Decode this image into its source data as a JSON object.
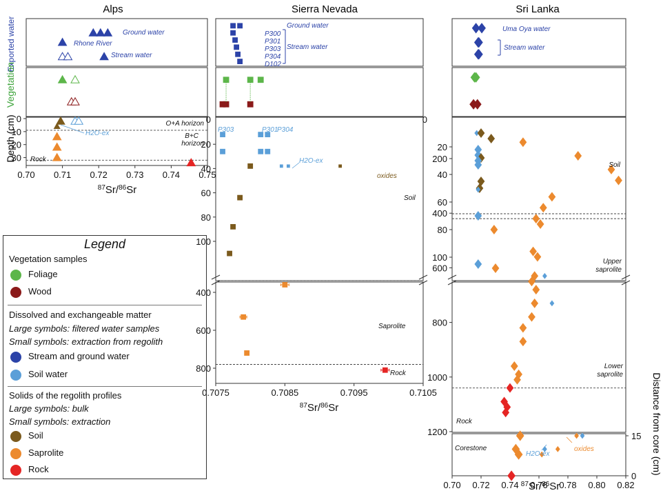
{
  "panels": {
    "alps": {
      "title": "Alps"
    },
    "sierra": {
      "title": "Sierra Nevada"
    },
    "srilanka": {
      "title": "Sri Lanka"
    }
  },
  "row_labels": {
    "exported_water": "Exported water",
    "vegetation": "Vegetation",
    "depth": "Depth (cm)",
    "distance": "Distance from core (cm)"
  },
  "xlabel": "87Sr/86Sr",
  "colors": {
    "foliage": "#5db64a",
    "wood": "#8b1a1a",
    "water": "#2c43a8",
    "soil_water": "#5b9fd8",
    "soil": "#7b5a1d",
    "saprolite": "#ec8a2e",
    "rock": "#e52524"
  },
  "annotations": {
    "alps_ground": "Ground water",
    "alps_rhone": "Rhone River",
    "alps_stream": "Stream water",
    "alps_oa": "O+A horizon",
    "alps_bc1": "B+C",
    "alps_bc2": "horizon",
    "alps_rock": "Rock",
    "alps_h2o": "H2O-ex",
    "sn_ground": "Ground water",
    "sn_p300": "P300",
    "sn_p301": "P301",
    "sn_p303": "P303",
    "sn_p304": "P304",
    "sn_d102": "D102",
    "sn_stream": "Stream water",
    "sn_lbl_p303": "P303",
    "sn_lbl_p301": "P301",
    "sn_lbl_p304": "P304",
    "sn_h2o": "H2O-ex",
    "sn_oxides": "oxides",
    "sn_soil": "Soil",
    "sn_saprolite": "Saprolite",
    "sn_rock": "Rock",
    "sl_uma": "Uma Oya water",
    "sl_stream": "Stream water",
    "sl_soil": "Soil",
    "sl_upper1": "Upper",
    "sl_upper2": "saprolite",
    "sl_lower1": "Lower",
    "sl_lower2": "saprolite",
    "sl_rock": "Rock",
    "sl_corestone": "Corestone",
    "sl_h2o": "H2O-ex",
    "sl_oxides": "oxides"
  },
  "legend": {
    "title": "Legend",
    "veg_header": "Vegetation samples",
    "foliage": "Foliage",
    "wood": "Wood",
    "dissolved_header": "Dissolved and exchangeable matter",
    "large_filtered": "Large symbols: filtered water samples",
    "small_extraction": "Small symbols: extraction from regolith",
    "stream_ground": "Stream and ground water",
    "soil_water": "Soil water",
    "solids_header": "Solids of the regolith profiles",
    "large_bulk": "Large symbols: bulk",
    "small_extr": "Small symbols: extraction",
    "soil": "Soil",
    "saprolite": "Saprolite",
    "rock": "Rock"
  },
  "chart_data": [
    {
      "type": "scatter",
      "panel": "Alps",
      "marker": "triangle",
      "xlim": [
        0.7,
        0.75
      ],
      "xticks": [
        "0.70",
        "0.71",
        "0.72",
        "0.73",
        "0.74",
        "0.75"
      ],
      "ylim_depth": [
        0,
        35
      ],
      "yticks": [
        "0",
        "10",
        "20",
        "30"
      ],
      "water": [
        {
          "x": 0.7185,
          "row": 0.3
        },
        {
          "x": 0.7205,
          "row": 0.3
        },
        {
          "x": 0.7225,
          "row": 0.3
        },
        {
          "x": 0.71,
          "row": 0.5
        },
        {
          "x": 0.71,
          "row": 0.8,
          "open": true
        },
        {
          "x": 0.7115,
          "row": 0.8,
          "open": true
        },
        {
          "x": 0.7215,
          "row": 0.8
        }
      ],
      "vegetation": [
        {
          "x": 0.71,
          "row": 0.25,
          "c": "foliage"
        },
        {
          "x": 0.7135,
          "row": 0.25,
          "c": "foliage",
          "open": true
        },
        {
          "x": 0.7125,
          "row": 0.7,
          "c": "wood",
          "open": true
        },
        {
          "x": 0.7135,
          "row": 0.7,
          "c": "wood",
          "open": true
        }
      ],
      "profile": [
        {
          "x": 0.7095,
          "d": 2,
          "c": "soil"
        },
        {
          "x": 0.7085,
          "d": 6,
          "c": "soil",
          "small": true
        },
        {
          "x": 0.7135,
          "d": 2,
          "c": "soil_water",
          "open": true
        },
        {
          "x": 0.7145,
          "d": 2,
          "c": "soil_water",
          "open": true
        },
        {
          "x": 0.7085,
          "d": 14,
          "c": "saprolite"
        },
        {
          "x": 0.7085,
          "d": 22,
          "c": "saprolite"
        },
        {
          "x": 0.7085,
          "d": 30,
          "c": "saprolite"
        },
        {
          "x": 0.7455,
          "d": 34,
          "c": "rock"
        }
      ],
      "hlines": [
        9,
        32
      ]
    },
    {
      "type": "scatter",
      "panel": "Sierra Nevada",
      "marker": "square",
      "xlim": [
        0.7075,
        0.7105
      ],
      "xticks": [
        "0.7075",
        "0.7085",
        "0.7095",
        "0.7105"
      ],
      "yticks_upper": [
        "0",
        "20",
        "40",
        "60",
        "80",
        "100"
      ],
      "yticks_lower": [
        "400",
        "600",
        "800"
      ],
      "water": [
        {
          "x": 0.70775,
          "row": 0.15
        },
        {
          "x": 0.70785,
          "row": 0.15
        },
        {
          "x": 0.70775,
          "row": 0.3
        },
        {
          "x": 0.70778,
          "row": 0.45
        },
        {
          "x": 0.7078,
          "row": 0.6
        },
        {
          "x": 0.70782,
          "row": 0.75
        },
        {
          "x": 0.70785,
          "row": 0.9
        }
      ],
      "vegetation": [
        {
          "x": 0.70765,
          "row": 0.25,
          "c": "foliage"
        },
        {
          "x": 0.708,
          "row": 0.25,
          "c": "foliage"
        },
        {
          "x": 0.70815,
          "row": 0.25,
          "c": "foliage"
        },
        {
          "x": 0.7076,
          "row": 0.75,
          "c": "wood"
        },
        {
          "x": 0.70765,
          "row": 0.75,
          "c": "wood"
        },
        {
          "x": 0.708,
          "row": 0.75,
          "c": "wood"
        }
      ],
      "profile_upper": [
        {
          "x": 0.7076,
          "d": 12,
          "c": "soil_water"
        },
        {
          "x": 0.7076,
          "d": 26,
          "c": "soil_water"
        },
        {
          "x": 0.70815,
          "d": 12,
          "c": "soil_water"
        },
        {
          "x": 0.70825,
          "d": 12,
          "c": "soil_water"
        },
        {
          "x": 0.70815,
          "d": 26,
          "c": "soil_water"
        },
        {
          "x": 0.70825,
          "d": 26,
          "c": "soil_water"
        },
        {
          "x": 0.708,
          "d": 38,
          "c": "soil"
        },
        {
          "x": 0.70785,
          "d": 64,
          "c": "soil"
        },
        {
          "x": 0.70775,
          "d": 88,
          "c": "soil"
        },
        {
          "x": 0.7077,
          "d": 110,
          "c": "soil"
        },
        {
          "x": 0.70845,
          "d": 38,
          "c": "soil_water",
          "small": true
        },
        {
          "x": 0.70855,
          "d": 38,
          "c": "soil_water",
          "small": true
        },
        {
          "x": 0.7093,
          "d": 38,
          "c": "soil",
          "small": true
        }
      ],
      "profile_lower": [
        {
          "x": 0.7085,
          "d": 360,
          "c": "saprolite",
          "err": 6e-05
        },
        {
          "x": 0.7079,
          "d": 530,
          "c": "saprolite",
          "err": 5e-05
        },
        {
          "x": 0.70795,
          "d": 720,
          "c": "saprolite"
        },
        {
          "x": 0.70995,
          "d": 810,
          "c": "rock",
          "err": 6e-05
        }
      ],
      "hlines_lower": [
        780
      ]
    },
    {
      "type": "scatter",
      "panel": "Sri Lanka",
      "marker": "diamond",
      "xlim": [
        0.7,
        0.82
      ],
      "xticks": [
        "0.70",
        "0.72",
        "0.74",
        "0.76",
        "0.78",
        "0.80",
        "0.82"
      ],
      "yticks_upper": [
        "20",
        "40",
        "60",
        "80",
        "100"
      ],
      "yticks_lower": [
        "200",
        "400",
        "600",
        "800",
        "1000",
        "1200"
      ],
      "yticks_right": [
        "0",
        "15"
      ],
      "water": [
        {
          "x": 0.7165,
          "row": 0.2
        },
        {
          "x": 0.7205,
          "row": 0.2
        },
        {
          "x": 0.718,
          "row": 0.5
        },
        {
          "x": 0.7185,
          "row": 0.5
        },
        {
          "x": 0.718,
          "row": 0.75
        },
        {
          "x": 0.7185,
          "row": 0.75
        }
      ],
      "vegetation": [
        {
          "x": 0.7155,
          "row": 0.2,
          "c": "foliage"
        },
        {
          "x": 0.7165,
          "row": 0.2,
          "c": "foliage"
        },
        {
          "x": 0.7148,
          "row": 0.75,
          "c": "wood"
        },
        {
          "x": 0.7175,
          "row": 0.75,
          "c": "wood"
        }
      ],
      "profile_upper": [
        {
          "x": 0.717,
          "d": 10,
          "c": "soil_water",
          "small": true
        },
        {
          "x": 0.72,
          "d": 10,
          "c": "soil"
        },
        {
          "x": 0.727,
          "d": 14,
          "c": "soil"
        },
        {
          "x": 0.718,
          "d": 22,
          "c": "soil_water"
        },
        {
          "x": 0.718,
          "d": 26,
          "c": "soil_water"
        },
        {
          "x": 0.72,
          "d": 28,
          "c": "soil"
        },
        {
          "x": 0.718,
          "d": 30,
          "c": "soil_water"
        },
        {
          "x": 0.718,
          "d": 33,
          "c": "soil_water"
        },
        {
          "x": 0.72,
          "d": 45,
          "c": "soil"
        },
        {
          "x": 0.719,
          "d": 50,
          "c": "soil"
        },
        {
          "x": 0.718,
          "d": 51,
          "c": "soil_water",
          "small": true
        },
        {
          "x": 0.718,
          "d": 70,
          "c": "soil_water"
        },
        {
          "x": 0.729,
          "d": 80,
          "c": "saprolite"
        },
        {
          "x": 0.718,
          "d": 105,
          "c": "soil_water"
        },
        {
          "x": 0.73,
          "d": 108,
          "c": "saprolite"
        }
      ],
      "profile_lower": [
        {
          "x": 0.749,
          "d": 140,
          "c": "saprolite"
        },
        {
          "x": 0.787,
          "d": 190,
          "c": "saprolite"
        },
        {
          "x": 0.81,
          "d": 240,
          "c": "saprolite"
        },
        {
          "x": 0.815,
          "d": 280,
          "c": "saprolite"
        },
        {
          "x": 0.769,
          "d": 340,
          "c": "saprolite"
        },
        {
          "x": 0.763,
          "d": 380,
          "c": "saprolite"
        },
        {
          "x": 0.758,
          "d": 420,
          "c": "saprolite"
        },
        {
          "x": 0.761,
          "d": 440,
          "c": "saprolite"
        },
        {
          "x": 0.756,
          "d": 540,
          "c": "saprolite"
        },
        {
          "x": 0.759,
          "d": 560,
          "c": "saprolite"
        },
        {
          "x": 0.757,
          "d": 630,
          "c": "saprolite"
        },
        {
          "x": 0.755,
          "d": 650,
          "c": "saprolite"
        },
        {
          "x": 0.764,
          "d": 630,
          "c": "soil_water",
          "small": true
        },
        {
          "x": 0.758,
          "d": 680,
          "c": "saprolite"
        },
        {
          "x": 0.757,
          "d": 730,
          "c": "saprolite"
        },
        {
          "x": 0.769,
          "d": 730,
          "c": "soil_water",
          "small": true
        },
        {
          "x": 0.755,
          "d": 780,
          "c": "saprolite"
        },
        {
          "x": 0.749,
          "d": 820,
          "c": "saprolite"
        },
        {
          "x": 0.749,
          "d": 870,
          "c": "saprolite"
        },
        {
          "x": 0.743,
          "d": 960,
          "c": "saprolite"
        },
        {
          "x": 0.746,
          "d": 990,
          "c": "saprolite"
        },
        {
          "x": 0.745,
          "d": 1010,
          "c": "saprolite"
        },
        {
          "x": 0.74,
          "d": 1040,
          "c": "rock"
        },
        {
          "x": 0.736,
          "d": 1090,
          "c": "rock"
        },
        {
          "x": 0.738,
          "d": 1110,
          "c": "rock"
        },
        {
          "x": 0.737,
          "d": 1130,
          "c": "rock"
        }
      ],
      "hlines_lower": [
        420,
        1040
      ],
      "corestone": [
        {
          "x": 0.747,
          "dist": 15,
          "c": "saprolite"
        },
        {
          "x": 0.764,
          "dist": 10,
          "c": "soil_water",
          "small": true
        },
        {
          "x": 0.773,
          "dist": 10,
          "c": "saprolite",
          "small": true
        },
        {
          "x": 0.786,
          "dist": 15,
          "c": "saprolite",
          "small": true
        },
        {
          "x": 0.79,
          "dist": 15,
          "c": "soil_water",
          "small": true
        },
        {
          "x": 0.744,
          "dist": 10,
          "c": "saprolite"
        },
        {
          "x": 0.746,
          "dist": 8,
          "c": "saprolite"
        },
        {
          "x": 0.762,
          "dist": 8,
          "c": "saprolite",
          "small": true
        },
        {
          "x": 0.741,
          "dist": 0,
          "c": "rock"
        }
      ]
    }
  ]
}
